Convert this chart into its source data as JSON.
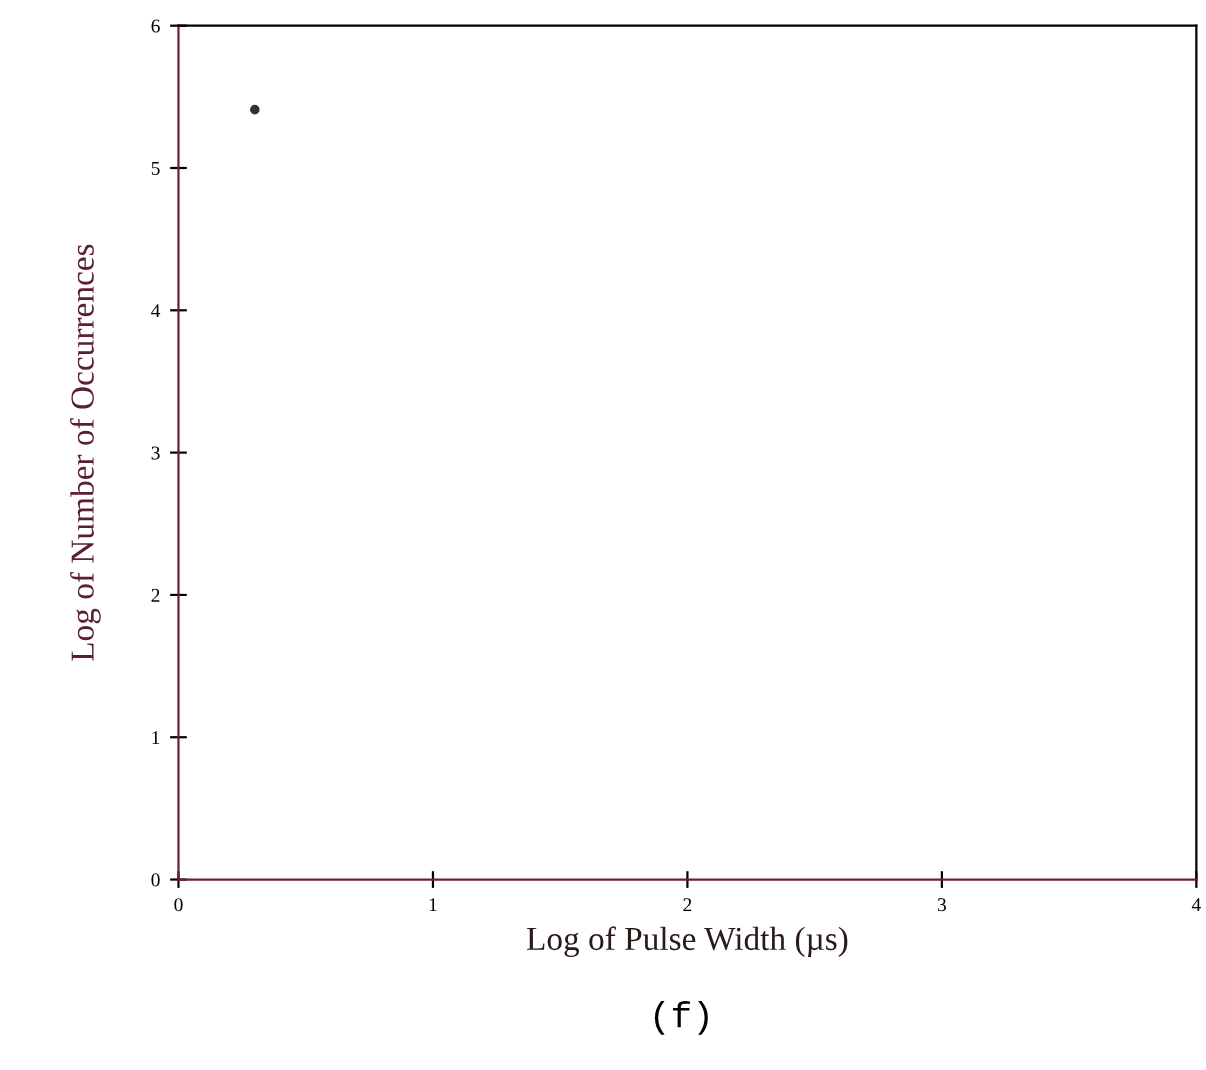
{
  "chart_data": {
    "type": "scatter",
    "x": [
      0.3
    ],
    "values": [
      5.41
    ],
    "color": "#333333",
    "marker": "circle",
    "xlabel": "Log of Pulse Width (µs)",
    "ylabel": "Log of Number of Occurrences",
    "xlim": [
      0,
      4
    ],
    "ylim": [
      0,
      6
    ],
    "xticks": [
      0,
      1,
      2,
      3,
      4
    ],
    "yticks": [
      0,
      1,
      2,
      3,
      4,
      5,
      6
    ],
    "grid": false,
    "annotations": [
      "(f)"
    ]
  }
}
